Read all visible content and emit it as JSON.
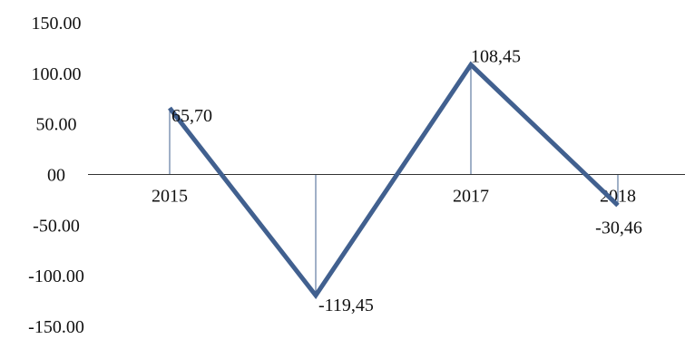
{
  "chart_data": {
    "type": "line",
    "title": "",
    "xlabel": "",
    "ylabel": "",
    "ylim": [
      -150,
      150
    ],
    "yticks": [
      {
        "value": 150,
        "label": "150.00"
      },
      {
        "value": 100,
        "label": "100.00"
      },
      {
        "value": 50,
        "label": "50.00"
      },
      {
        "value": 0,
        "label": "00"
      },
      {
        "value": -50,
        "label": "-50.00"
      },
      {
        "value": -100,
        "label": "-100.00"
      },
      {
        "value": -150,
        "label": "-150.00"
      }
    ],
    "categories": [
      "2015",
      "",
      "2017",
      "2018"
    ],
    "series": [
      {
        "values": [
          65.7,
          -119.45,
          108.45,
          -30.46
        ],
        "data_labels": [
          "65,70",
          "-119,45",
          "108,45",
          "-30,46"
        ]
      }
    ],
    "grid": false,
    "legend": "none",
    "line_color": "#41608F",
    "axis_color": "#333333"
  }
}
